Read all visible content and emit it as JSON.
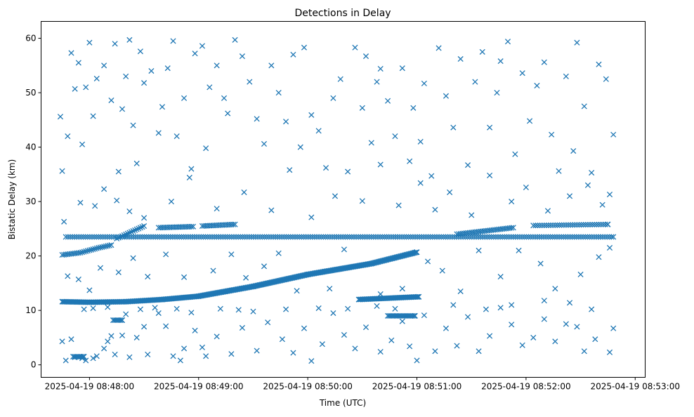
{
  "chart_data": {
    "type": "scatter",
    "title": "Detections in Delay",
    "xlabel": "Time (UTC)",
    "ylabel": "Bistatic Delay (km)",
    "x_units": "seconds relative to 2025-04-19 08:48:00 UTC",
    "xlim": [
      -26.6,
      305.5
    ],
    "ylim": [
      -2.3,
      63.1
    ],
    "grid": false,
    "marker": "x",
    "color": "#1f77b4",
    "x_ticks": [
      {
        "value": 0,
        "label": "2025-04-19 08:48:00"
      },
      {
        "value": 60,
        "label": "2025-04-19 08:49:00"
      },
      {
        "value": 120,
        "label": "2025-04-19 08:50:00"
      },
      {
        "value": 180,
        "label": "2025-04-19 08:51:00"
      },
      {
        "value": 240,
        "label": "2025-04-19 08:52:00"
      },
      {
        "value": 300,
        "label": "2025-04-19 08:53:00"
      }
    ],
    "y_ticks": [
      {
        "value": 0,
        "label": "0"
      },
      {
        "value": 10,
        "label": "10"
      },
      {
        "value": 20,
        "label": "20"
      },
      {
        "value": 30,
        "label": "30"
      },
      {
        "value": 40,
        "label": "40"
      },
      {
        "value": 50,
        "label": "50"
      },
      {
        "value": 60,
        "label": "60"
      }
    ],
    "tracks": [
      {
        "name": "rising-track",
        "step": 0.6,
        "points": [
          [
            -15,
            11.6
          ],
          [
            0,
            11.5
          ],
          [
            20,
            11.6
          ],
          [
            40,
            12.0
          ],
          [
            60,
            12.6
          ],
          [
            90,
            14.4
          ],
          [
            120,
            16.6
          ],
          [
            155,
            18.6
          ],
          [
            180,
            20.7
          ]
        ]
      },
      {
        "name": "constant-track",
        "step": 1.2,
        "points": [
          [
            -13,
            23.5
          ],
          [
            288,
            23.5
          ]
        ]
      },
      {
        "name": "track-b1",
        "step": 1.0,
        "points": [
          [
            -15,
            20.2
          ],
          [
            -5,
            20.6
          ],
          [
            5,
            21.5
          ],
          [
            12,
            22.0
          ]
        ]
      },
      {
        "name": "track-b2",
        "step": 1.0,
        "points": [
          [
            15,
            23.2
          ],
          [
            30,
            25.5
          ]
        ]
      },
      {
        "name": "track-b3",
        "step": 1.0,
        "points": [
          [
            38,
            25.2
          ],
          [
            57,
            25.4
          ]
        ]
      },
      {
        "name": "track-b4",
        "step": 1.0,
        "points": [
          [
            62,
            25.5
          ],
          [
            80,
            25.8
          ]
        ]
      },
      {
        "name": "track-b5",
        "step": 1.0,
        "points": [
          [
            202,
            24.0
          ],
          [
            233,
            25.2
          ]
        ]
      },
      {
        "name": "track-b6",
        "step": 1.2,
        "points": [
          [
            244,
            25.6
          ],
          [
            285,
            25.8
          ]
        ]
      },
      {
        "name": "track-d",
        "step": 0.6,
        "points": [
          [
            148,
            12.0
          ],
          [
            181,
            12.5
          ]
        ]
      },
      {
        "name": "track-e",
        "step": 0.8,
        "points": [
          [
            164,
            9.0
          ],
          [
            179,
            9.0
          ]
        ]
      },
      {
        "name": "track-f",
        "step": 0.8,
        "points": [
          [
            13,
            8.2
          ],
          [
            18,
            8.2
          ]
        ]
      },
      {
        "name": "track-g",
        "step": 0.8,
        "points": [
          [
            -9,
            1.5
          ],
          [
            -3,
            1.5
          ]
        ]
      }
    ],
    "points": [
      [
        -16,
        45.6
      ],
      [
        -15,
        35.6
      ],
      [
        -12,
        42
      ],
      [
        -10,
        57.3
      ],
      [
        -8,
        50.7
      ],
      [
        -6,
        55.5
      ],
      [
        -4,
        40.5
      ],
      [
        -2,
        51
      ],
      [
        0,
        59.2
      ],
      [
        2,
        45.7
      ],
      [
        4,
        52.6
      ],
      [
        8,
        55
      ],
      [
        12,
        48.6
      ],
      [
        14,
        59
      ],
      [
        16,
        35.5
      ],
      [
        18,
        47
      ],
      [
        20,
        53
      ],
      [
        22,
        59.7
      ],
      [
        24,
        44
      ],
      [
        26,
        37
      ],
      [
        28,
        57.6
      ],
      [
        30,
        51.8
      ],
      [
        34,
        54
      ],
      [
        38,
        42.6
      ],
      [
        40,
        47.4
      ],
      [
        43,
        54.5
      ],
      [
        46,
        59.5
      ],
      [
        48,
        42
      ],
      [
        52,
        49
      ],
      [
        56,
        36
      ],
      [
        58,
        57.2
      ],
      [
        62,
        58.6
      ],
      [
        64,
        39.8
      ],
      [
        66,
        51
      ],
      [
        70,
        55
      ],
      [
        74,
        49
      ],
      [
        76,
        46.2
      ],
      [
        80,
        59.7
      ],
      [
        84,
        56.7
      ],
      [
        88,
        52
      ],
      [
        92,
        45.2
      ],
      [
        96,
        40.6
      ],
      [
        100,
        55
      ],
      [
        104,
        50
      ],
      [
        108,
        44.7
      ],
      [
        112,
        57
      ],
      [
        116,
        40
      ],
      [
        118,
        58.3
      ],
      [
        122,
        45.9
      ],
      [
        126,
        43
      ],
      [
        130,
        36.2
      ],
      [
        134,
        49
      ],
      [
        138,
        52.5
      ],
      [
        142,
        35.5
      ],
      [
        146,
        58.3
      ],
      [
        150,
        47.2
      ],
      [
        152,
        56.7
      ],
      [
        155,
        40.8
      ],
      [
        158,
        52
      ],
      [
        160,
        54.4
      ],
      [
        164,
        48.5
      ],
      [
        168,
        42
      ],
      [
        172,
        54.5
      ],
      [
        176,
        37.4
      ],
      [
        178,
        47.2
      ],
      [
        182,
        41
      ],
      [
        184,
        51.7
      ],
      [
        188,
        34.7
      ],
      [
        192,
        58.2
      ],
      [
        196,
        49.4
      ],
      [
        200,
        43.6
      ],
      [
        204,
        56.2
      ],
      [
        208,
        36.7
      ],
      [
        212,
        52
      ],
      [
        216,
        57.5
      ],
      [
        220,
        43.6
      ],
      [
        224,
        50
      ],
      [
        226,
        55.8
      ],
      [
        230,
        59.4
      ],
      [
        234,
        38.7
      ],
      [
        238,
        53.6
      ],
      [
        242,
        44.8
      ],
      [
        246,
        51.3
      ],
      [
        250,
        55.6
      ],
      [
        254,
        42.3
      ],
      [
        258,
        35.6
      ],
      [
        262,
        53
      ],
      [
        266,
        39.3
      ],
      [
        268,
        59.2
      ],
      [
        272,
        47.5
      ],
      [
        276,
        35.3
      ],
      [
        280,
        55.2
      ],
      [
        284,
        52.5
      ],
      [
        286,
        31.3
      ],
      [
        288,
        42.3
      ],
      [
        -14,
        26.3
      ],
      [
        -5,
        29.8
      ],
      [
        3,
        29.2
      ],
      [
        8,
        32.3
      ],
      [
        15,
        30.2
      ],
      [
        22,
        28.2
      ],
      [
        30,
        27
      ],
      [
        45,
        30
      ],
      [
        55,
        34.4
      ],
      [
        70,
        28.7
      ],
      [
        85,
        31.7
      ],
      [
        100,
        28.4
      ],
      [
        110,
        35.8
      ],
      [
        122,
        27.1
      ],
      [
        135,
        31
      ],
      [
        150,
        30.1
      ],
      [
        160,
        36.8
      ],
      [
        170,
        29.3
      ],
      [
        182,
        33.4
      ],
      [
        190,
        28.5
      ],
      [
        198,
        31.7
      ],
      [
        210,
        27.5
      ],
      [
        220,
        34.8
      ],
      [
        232,
        30
      ],
      [
        240,
        32.6
      ],
      [
        252,
        28.3
      ],
      [
        264,
        31
      ],
      [
        274,
        33
      ],
      [
        282,
        29.4
      ],
      [
        -12,
        16.3
      ],
      [
        -6,
        15.7
      ],
      [
        0,
        13.7
      ],
      [
        6,
        17.8
      ],
      [
        16,
        17
      ],
      [
        24,
        19.6
      ],
      [
        32,
        16.2
      ],
      [
        42,
        20.3
      ],
      [
        52,
        16.1
      ],
      [
        68,
        17.3
      ],
      [
        78,
        20.3
      ],
      [
        86,
        16
      ],
      [
        96,
        18.1
      ],
      [
        104,
        20.5
      ],
      [
        114,
        13.6
      ],
      [
        132,
        14
      ],
      [
        140,
        21.2
      ],
      [
        160,
        13
      ],
      [
        172,
        14
      ],
      [
        186,
        19
      ],
      [
        194,
        17.3
      ],
      [
        204,
        13.5
      ],
      [
        214,
        21
      ],
      [
        226,
        16.2
      ],
      [
        236,
        21
      ],
      [
        248,
        18.6
      ],
      [
        256,
        14
      ],
      [
        270,
        16.6
      ],
      [
        280,
        19.8
      ],
      [
        286,
        21.5
      ],
      [
        -15,
        4.3
      ],
      [
        -13,
        0.8
      ],
      [
        -10,
        4.7
      ],
      [
        -8,
        1.4
      ],
      [
        -6,
        1.4
      ],
      [
        -4,
        1.2
      ],
      [
        -2,
        0.8
      ],
      [
        2,
        1.2
      ],
      [
        4,
        1.6
      ],
      [
        8,
        3
      ],
      [
        10,
        4.3
      ],
      [
        12,
        5.3
      ],
      [
        14,
        1.9
      ],
      [
        18,
        5.4
      ],
      [
        22,
        1.4
      ],
      [
        26,
        5
      ],
      [
        30,
        7
      ],
      [
        32,
        1.9
      ],
      [
        38,
        9.5
      ],
      [
        42,
        7.1
      ],
      [
        46,
        1.6
      ],
      [
        50,
        0.8
      ],
      [
        52,
        3
      ],
      [
        58,
        6.3
      ],
      [
        62,
        3.2
      ],
      [
        64,
        1.6
      ],
      [
        70,
        5.2
      ],
      [
        78,
        2
      ],
      [
        84,
        6.8
      ],
      [
        92,
        2.6
      ],
      [
        98,
        7.8
      ],
      [
        106,
        4.7
      ],
      [
        112,
        2.2
      ],
      [
        118,
        6.7
      ],
      [
        122,
        0.7
      ],
      [
        128,
        3.8
      ],
      [
        134,
        9.5
      ],
      [
        140,
        5.5
      ],
      [
        146,
        3
      ],
      [
        152,
        6.9
      ],
      [
        160,
        2.4
      ],
      [
        166,
        4.5
      ],
      [
        172,
        8
      ],
      [
        176,
        3.4
      ],
      [
        180,
        0.8
      ],
      [
        184,
        9.1
      ],
      [
        190,
        2.5
      ],
      [
        196,
        6.7
      ],
      [
        202,
        3.5
      ],
      [
        208,
        8.8
      ],
      [
        214,
        2.5
      ],
      [
        220,
        5.3
      ],
      [
        226,
        10.5
      ],
      [
        232,
        7.4
      ],
      [
        238,
        3.6
      ],
      [
        244,
        5
      ],
      [
        250,
        8.4
      ],
      [
        256,
        4.3
      ],
      [
        262,
        7.5
      ],
      [
        268,
        7
      ],
      [
        272,
        2.5
      ],
      [
        278,
        4.7
      ],
      [
        286,
        2.3
      ],
      [
        288,
        6.7
      ],
      [
        -3,
        10.2
      ],
      [
        2,
        10.4
      ],
      [
        10,
        10.6
      ],
      [
        20,
        9.3
      ],
      [
        28,
        10.2
      ],
      [
        36,
        10.5
      ],
      [
        48,
        10.3
      ],
      [
        56,
        9.6
      ],
      [
        72,
        10.3
      ],
      [
        82,
        10.1
      ],
      [
        90,
        9.8
      ],
      [
        108,
        10.2
      ],
      [
        126,
        10.4
      ],
      [
        142,
        10.3
      ],
      [
        158,
        10.8
      ],
      [
        168,
        10.3
      ],
      [
        200,
        11.0
      ],
      [
        218,
        10.2
      ],
      [
        232,
        11.0
      ],
      [
        250,
        11.8
      ],
      [
        264,
        11.4
      ],
      [
        276,
        10.2
      ]
    ]
  }
}
